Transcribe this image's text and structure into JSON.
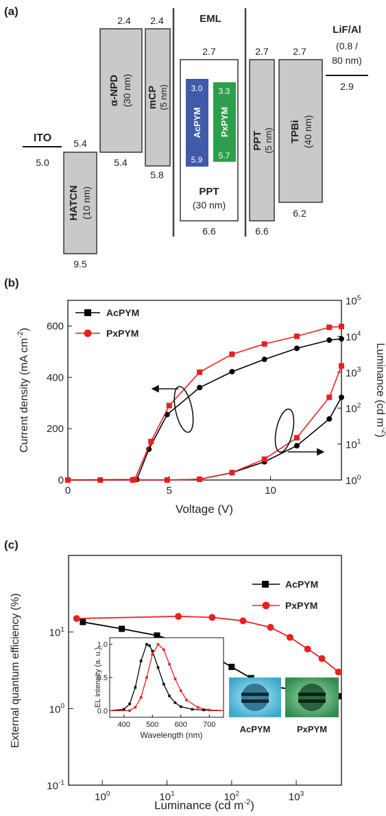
{
  "panel_a": {
    "label": "(a)",
    "eml_label": "EML",
    "ito": {
      "name": "ITO",
      "level": "5.0"
    },
    "hatcn": {
      "name": "HATCN",
      "thickness": "(10 nm)",
      "top": "5.4",
      "bottom": "9.5"
    },
    "npd": {
      "name": "α-NPD",
      "thickness": "(30 nm)",
      "top": "2.4",
      "bottom": "5.4"
    },
    "mcp": {
      "name": "mCP",
      "thickness": "(5 nm)",
      "top": "2.4",
      "bottom": "5.8"
    },
    "ppt_eml": {
      "name": "PPT",
      "thickness": "(30 nm)",
      "top": "2.7",
      "bottom": "6.6"
    },
    "acpym": {
      "name": "AcPYM",
      "top": "3.0",
      "bottom": "5.9",
      "color": "#3f5aa8"
    },
    "pxpym": {
      "name": "PxPYM",
      "top": "3.3",
      "bottom": "5.7",
      "color": "#2f9e4c"
    },
    "ppt_etl": {
      "name": "PPT",
      "thickness": "(5 nm)",
      "top": "2.7",
      "bottom": "6.6"
    },
    "tpbi": {
      "name": "TPBi",
      "thickness": "(40 nm)",
      "top": "2.7",
      "bottom": "6.2"
    },
    "cathode": {
      "name": "LiF/Al",
      "thickness_line1": "(0.8 /",
      "thickness_line2": "80 nm)",
      "level": "2.9"
    }
  },
  "chart_data": [
    {
      "panel": "(b)",
      "type": "line",
      "xlabel": "Voltage (V)",
      "ylabel_left": "Current density (mA cm",
      "ylabel_left_sup": "-2",
      "ylabel_left_end": ")",
      "ylabel_right": "Luminance (cd m",
      "ylabel_right_sup": "-2",
      "ylabel_right_end": ")",
      "xlim": [
        0,
        13.5
      ],
      "ylim_left": [
        0,
        700
      ],
      "ylim_right_log": [
        1,
        100000
      ],
      "x_ticks": [
        "0",
        "5",
        "10"
      ],
      "y_left_ticks": [
        "0",
        "200",
        "400",
        "600"
      ],
      "y_right_ticks": [
        {
          "base": "10",
          "exp": "0"
        },
        {
          "base": "10",
          "exp": "1"
        },
        {
          "base": "10",
          "exp": "2"
        },
        {
          "base": "10",
          "exp": "3"
        },
        {
          "base": "10",
          "exp": "4"
        },
        {
          "base": "10",
          "exp": "5"
        }
      ],
      "legend": [
        "AcPYM",
        "PxPYM"
      ],
      "series": [
        {
          "name": "AcPYM",
          "quantity": "current_density",
          "color": "#000000",
          "marker": "circle",
          "x": [
            0,
            3.4,
            4.0,
            4.9,
            6.5,
            8.1,
            9.7,
            11.3,
            12.9,
            13.5
          ],
          "y": [
            0,
            2,
            120,
            255,
            360,
            422,
            470,
            513,
            545,
            550
          ]
        },
        {
          "name": "PxPYM",
          "quantity": "current_density",
          "color": "#e82020",
          "marker": "square",
          "x": [
            0,
            1.6,
            3.3,
            4.1,
            5.0,
            6.5,
            8.1,
            9.7,
            11.3,
            12.9,
            13.5
          ],
          "y": [
            0,
            0,
            2,
            150,
            290,
            420,
            490,
            530,
            560,
            595,
            598
          ]
        },
        {
          "name": "AcPYM",
          "quantity": "luminance",
          "color": "#000000",
          "marker": "circle",
          "x": [
            0,
            3.2,
            4.9,
            6.5,
            8.1,
            9.7,
            11.3,
            12.9,
            13.5
          ],
          "y": [
            1,
            1,
            1,
            1.05,
            1.6,
            3.2,
            9,
            50,
            200
          ]
        },
        {
          "name": "PxPYM",
          "quantity": "luminance",
          "color": "#e82020",
          "marker": "square",
          "x": [
            0,
            3.2,
            4.9,
            6.5,
            8.1,
            9.7,
            11.3,
            12.9,
            13.5
          ],
          "y": [
            1,
            1,
            1,
            1.05,
            1.6,
            3.8,
            15,
            200,
            1500
          ]
        }
      ]
    },
    {
      "panel": "(c)",
      "type": "line",
      "xlabel": "Luminance (cd m",
      "xlabel_sup": "-2",
      "xlabel_end": ")",
      "ylabel": "External quantum efficiency (%)",
      "x_log": true,
      "y_log": true,
      "xlim": [
        0.3,
        5000
      ],
      "ylim": [
        0.1,
        100
      ],
      "x_ticks": [
        {
          "base": "10",
          "exp": "0"
        },
        {
          "base": "10",
          "exp": "1"
        },
        {
          "base": "10",
          "exp": "2"
        },
        {
          "base": "10",
          "exp": "3"
        }
      ],
      "y_ticks": [
        {
          "base": "10",
          "exp": "-1"
        },
        {
          "base": "10",
          "exp": "0"
        },
        {
          "base": "10",
          "exp": "1"
        }
      ],
      "legend": [
        "AcPYM",
        "PxPYM"
      ],
      "series": [
        {
          "name": "AcPYM",
          "color": "#000000",
          "marker": "square",
          "x": [
            0.5,
            2,
            7,
            25,
            60,
            100,
            200,
            300,
            500,
            800,
            1200,
            2000,
            3000,
            4500
          ],
          "y": [
            13.5,
            11,
            9,
            6.5,
            4.5,
            3.5,
            2.5,
            2.1,
            1.9,
            1.8,
            1.7,
            1.6,
            1.5,
            1.45
          ]
        },
        {
          "name": "PxPYM",
          "color": "#e82020",
          "marker": "circle",
          "x": [
            0.4,
            15,
            50,
            150,
            400,
            800,
            1500,
            2500,
            4500
          ],
          "y": [
            15,
            16,
            15.5,
            14,
            11.5,
            8.5,
            6,
            4.5,
            3.0
          ]
        }
      ],
      "inset": {
        "type": "line",
        "xlabel": "Wavelength (nm)",
        "ylabel": "EL intensity (a. u.)",
        "xlim": [
          350,
          750
        ],
        "ylim": [
          -0.1,
          1.1
        ],
        "x_ticks": [
          "400",
          "500",
          "600",
          "700"
        ],
        "y_ticks": [
          "0.0",
          "0.5",
          "1.0"
        ],
        "series": [
          {
            "name": "AcPYM",
            "color": "#000000",
            "x": [
              350,
              400,
              420,
              440,
              460,
              480,
              490,
              500,
              520,
              540,
              560,
              580,
              600,
              640,
              680,
              720,
              750
            ],
            "y": [
              0,
              0.02,
              0.1,
              0.35,
              0.75,
              1.0,
              0.98,
              0.9,
              0.65,
              0.4,
              0.22,
              0.12,
              0.06,
              0.02,
              0.01,
              0,
              0
            ]
          },
          {
            "name": "PxPYM",
            "color": "#e82020",
            "x": [
              350,
              420,
              440,
              460,
              480,
              500,
              520,
              540,
              560,
              580,
              600,
              620,
              660,
              700,
              750
            ],
            "y": [
              0,
              0,
              0.05,
              0.2,
              0.5,
              0.85,
              1.0,
              0.92,
              0.7,
              0.48,
              0.3,
              0.16,
              0.05,
              0.01,
              0
            ]
          }
        ]
      },
      "photos": [
        {
          "label": "AcPYM",
          "color": "#4fb8d8"
        },
        {
          "label": "PxPYM",
          "color": "#3fa060"
        }
      ]
    }
  ]
}
